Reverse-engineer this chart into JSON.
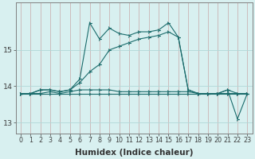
{
  "xlabel": "Humidex (Indice chaleur)",
  "background_color": "#d8f0f0",
  "grid_color_v": "#c8a8a8",
  "grid_color_h": "#b0d8d8",
  "line_color": "#1a6b6b",
  "x_values": [
    0,
    1,
    2,
    3,
    4,
    5,
    6,
    7,
    8,
    9,
    10,
    11,
    12,
    13,
    14,
    15,
    16,
    17,
    18,
    19,
    20,
    21,
    22,
    23
  ],
  "series": [
    [
      13.8,
      13.8,
      13.9,
      13.9,
      13.85,
      13.9,
      14.2,
      15.75,
      15.3,
      15.6,
      15.45,
      15.4,
      15.5,
      15.5,
      15.55,
      15.75,
      15.35,
      13.9,
      13.8,
      13.8,
      13.8,
      13.9,
      13.1,
      13.8
    ],
    [
      13.8,
      13.8,
      13.9,
      13.9,
      13.85,
      13.9,
      14.1,
      14.4,
      14.6,
      15.0,
      15.1,
      15.2,
      15.3,
      15.35,
      15.4,
      15.5,
      15.35,
      13.9,
      13.8,
      13.8,
      13.8,
      13.8,
      13.8,
      13.8
    ],
    [
      13.8,
      13.8,
      13.8,
      13.85,
      13.8,
      13.85,
      13.9,
      13.9,
      13.9,
      13.9,
      13.85,
      13.85,
      13.85,
      13.85,
      13.85,
      13.85,
      13.85,
      13.85,
      13.8,
      13.8,
      13.8,
      13.9,
      13.8,
      13.8
    ],
    [
      13.8,
      13.8,
      13.8,
      13.8,
      13.8,
      13.8,
      13.8,
      13.8,
      13.8,
      13.8,
      13.8,
      13.8,
      13.8,
      13.8,
      13.8,
      13.8,
      13.8,
      13.8,
      13.8,
      13.8,
      13.8,
      13.8,
      13.8,
      13.8
    ]
  ],
  "ylim": [
    12.7,
    16.3
  ],
  "yticks": [
    13,
    14,
    15
  ],
  "xlim": [
    -0.5,
    23.5
  ],
  "xticks": [
    0,
    1,
    2,
    3,
    4,
    5,
    6,
    7,
    8,
    9,
    10,
    11,
    12,
    13,
    14,
    15,
    16,
    17,
    18,
    19,
    20,
    21,
    22,
    23
  ],
  "tick_fontsize": 5.8,
  "xlabel_fontsize": 7.5
}
